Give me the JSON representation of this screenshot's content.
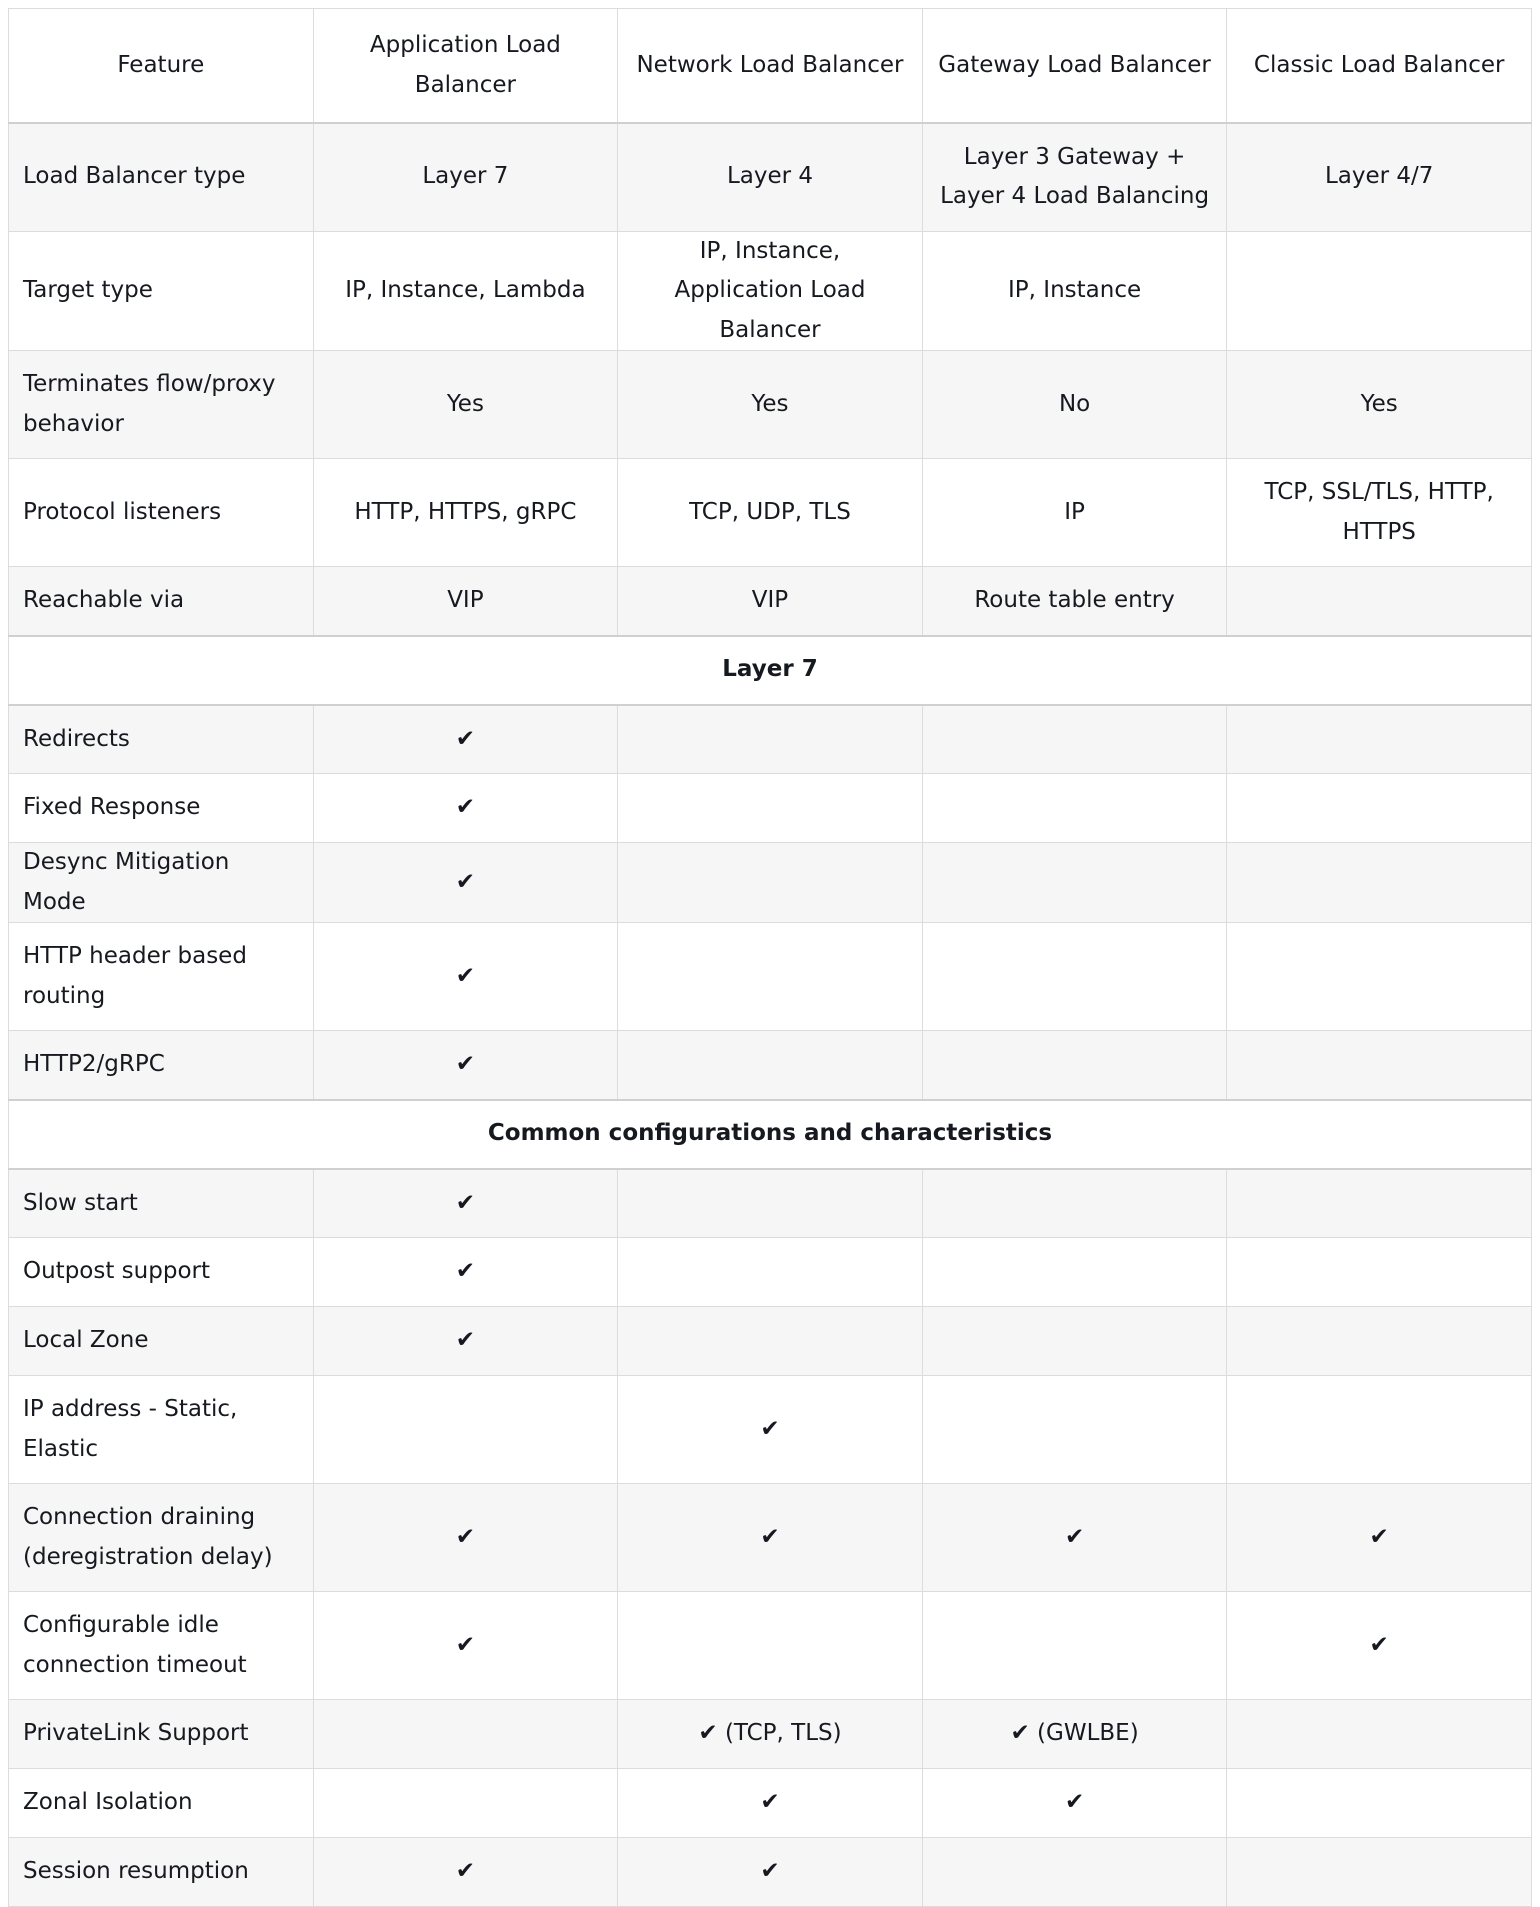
{
  "headers": [
    "Feature",
    "Application Load Balancer",
    "Network Load Balancer",
    "Gateway Load Balancer",
    "Classic Load Balancer"
  ],
  "rows": [
    {
      "type": "row",
      "h": 108,
      "bg": "gray",
      "cells": [
        "Load Balancer type",
        "Layer 7",
        "Layer 4",
        "Layer 3 Gateway + Layer 4 Load Balancing",
        "Layer 4/7"
      ]
    },
    {
      "type": "row",
      "h": 108,
      "bg": "white",
      "cells": [
        "Target type",
        "IP, Instance, Lambda",
        "IP, Instance, Application Load Balancer",
        "IP, Instance",
        ""
      ]
    },
    {
      "type": "row",
      "h": 108,
      "bg": "gray",
      "cells": [
        "Terminates flow/proxy behavior",
        "Yes",
        "Yes",
        "No",
        "Yes"
      ]
    },
    {
      "type": "row",
      "h": 108,
      "bg": "white",
      "cells": [
        "Protocol listeners",
        "HTTP, HTTPS, gRPC",
        "TCP, UDP, TLS",
        "IP",
        "TCP, SSL/TLS, HTTP, HTTPS"
      ]
    },
    {
      "type": "row",
      "h": 69,
      "bg": "gray",
      "cells": [
        "Reachable via",
        "VIP",
        "VIP",
        "Route table entry",
        ""
      ]
    },
    {
      "type": "section",
      "h": 69,
      "label": "Layer 7"
    },
    {
      "type": "row",
      "h": 69,
      "bg": "gray",
      "cells": [
        "Redirects",
        "✔",
        "",
        "",
        ""
      ]
    },
    {
      "type": "row",
      "h": 69,
      "bg": "white",
      "cells": [
        "Fixed Response",
        "✔",
        "",
        "",
        ""
      ]
    },
    {
      "type": "row",
      "h": 69,
      "bg": "gray",
      "cells": [
        "Desync Mitigation Mode",
        "✔",
        "",
        "",
        ""
      ]
    },
    {
      "type": "row",
      "h": 108,
      "bg": "white",
      "cells": [
        "HTTP header based routing",
        "✔",
        "",
        "",
        ""
      ]
    },
    {
      "type": "row",
      "h": 69,
      "bg": "gray",
      "cells": [
        "HTTP2/gRPC",
        "✔",
        "",
        "",
        ""
      ]
    },
    {
      "type": "section",
      "h": 69,
      "label": "Common configurations and characteristics"
    },
    {
      "type": "row",
      "h": 69,
      "bg": "gray",
      "cells": [
        "Slow start",
        "✔",
        "",
        "",
        ""
      ]
    },
    {
      "type": "row",
      "h": 69,
      "bg": "white",
      "cells": [
        "Outpost support",
        "✔",
        "",
        "",
        ""
      ]
    },
    {
      "type": "row",
      "h": 69,
      "bg": "gray",
      "cells": [
        "Local Zone",
        "✔",
        "",
        "",
        ""
      ]
    },
    {
      "type": "row",
      "h": 108,
      "bg": "white",
      "cells": [
        "IP address - Static, Elastic",
        "",
        "✔",
        "",
        ""
      ]
    },
    {
      "type": "row",
      "h": 108,
      "bg": "gray",
      "cells": [
        "Connection draining (deregistration delay)",
        "✔",
        "✔",
        "✔",
        "✔"
      ]
    },
    {
      "type": "row",
      "h": 108,
      "bg": "white",
      "cells": [
        "Configurable idle connection timeout",
        "✔",
        "",
        "",
        "✔"
      ]
    },
    {
      "type": "row",
      "h": 69,
      "bg": "gray",
      "cells": [
        "PrivateLink Support",
        "",
        "✔ (TCP, TLS)",
        "✔ (GWLBE)",
        ""
      ]
    },
    {
      "type": "row",
      "h": 69,
      "bg": "white",
      "cells": [
        "Zonal Isolation",
        "",
        "✔",
        "✔",
        ""
      ]
    },
    {
      "type": "row",
      "h": 69,
      "bg": "gray",
      "cells": [
        "Session resumption",
        "✔",
        "✔",
        "",
        ""
      ]
    }
  ]
}
